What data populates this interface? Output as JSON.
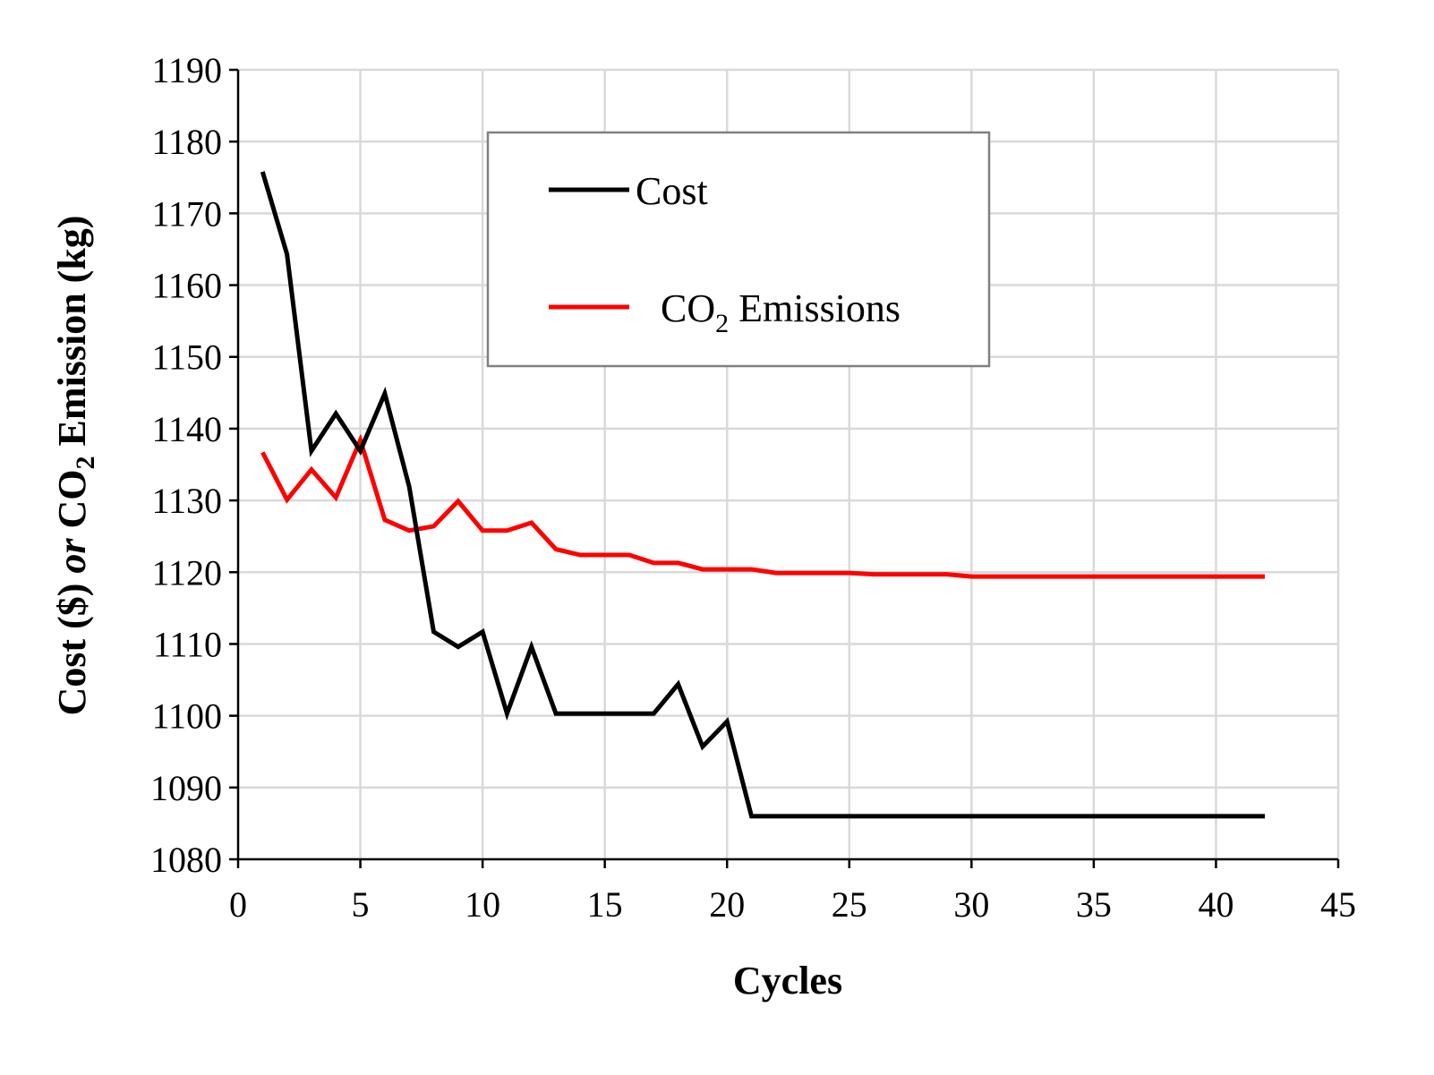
{
  "chart_data": {
    "type": "line",
    "title": "",
    "xlabel": "Cycles",
    "ylabel": {
      "part1": "Cost ($) ",
      "part2": "or",
      "part3": " CO",
      "sub": "2",
      "part4": " Emission (kg)"
    },
    "xlim": [
      0,
      45
    ],
    "ylim": [
      1080,
      1190
    ],
    "xticks": [
      0,
      5,
      10,
      15,
      20,
      25,
      30,
      35,
      40,
      45
    ],
    "yticks": [
      1080,
      1090,
      1100,
      1110,
      1120,
      1130,
      1140,
      1150,
      1160,
      1170,
      1180,
      1190
    ],
    "grid": true,
    "legend_position": "top-center",
    "x": [
      1,
      2,
      3,
      4,
      5,
      6,
      7,
      8,
      9,
      10,
      11,
      12,
      13,
      14,
      15,
      16,
      17,
      18,
      19,
      20,
      21,
      22,
      23,
      24,
      25,
      26,
      27,
      28,
      29,
      30,
      31,
      32,
      33,
      34,
      35,
      36,
      37,
      38,
      39,
      40,
      41,
      42
    ],
    "series": [
      {
        "name": "Cost",
        "color": "#000000",
        "values": [
          1175.8,
          1164.3,
          1136.9,
          1142.1,
          1136.9,
          1144.9,
          1131.9,
          1111.7,
          1109.6,
          1111.7,
          1100.3,
          1109.6,
          1100.3,
          1100.3,
          1100.3,
          1100.3,
          1100.3,
          1104.4,
          1095.7,
          1099.2,
          1086,
          1086,
          1086,
          1086,
          1086,
          1086,
          1086,
          1086,
          1086,
          1086,
          1086,
          1086,
          1086,
          1086,
          1086,
          1086,
          1086,
          1086,
          1086,
          1086,
          1086,
          1086
        ]
      },
      {
        "name": "CO2 Emissions",
        "color": "#ff0000",
        "values": [
          1136.7,
          1130.1,
          1134.3,
          1130.4,
          1138.4,
          1127.3,
          1125.8,
          1126.4,
          1129.9,
          1125.8,
          1125.8,
          1126.9,
          1123.2,
          1122.4,
          1122.4,
          1122.4,
          1121.3,
          1121.3,
          1120.4,
          1120.4,
          1120.4,
          1119.9,
          1119.9,
          1119.9,
          1119.9,
          1119.7,
          1119.7,
          1119.7,
          1119.7,
          1119.4,
          1119.4,
          1119.4,
          1119.4,
          1119.4,
          1119.4,
          1119.4,
          1119.4,
          1119.4,
          1119.4,
          1119.4,
          1119.4,
          1119.4
        ]
      }
    ],
    "legend": {
      "cost": "Cost",
      "co2_prefix": "CO",
      "co2_sub": "2",
      "co2_suffix": " Emissions"
    }
  }
}
